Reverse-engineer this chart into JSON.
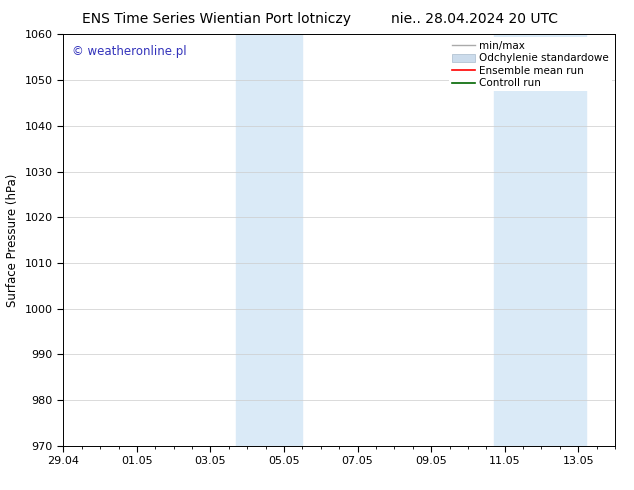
{
  "title_left": "ENS Time Series Wientian Port lotniczy",
  "title_right": "nie.. 28.04.2024 20 UTC",
  "ylabel": "Surface Pressure (hPa)",
  "ylim": [
    970,
    1060
  ],
  "yticks": [
    970,
    980,
    990,
    1000,
    1010,
    1020,
    1030,
    1040,
    1050,
    1060
  ],
  "xtick_labels": [
    "29.04",
    "01.05",
    "03.05",
    "05.05",
    "07.05",
    "09.05",
    "11.05",
    "13.05"
  ],
  "xtick_positions": [
    0,
    2,
    4,
    6,
    8,
    10,
    12,
    14
  ],
  "xlim": [
    0,
    15
  ],
  "background_color": "#ffffff",
  "plot_bg_color": "#ffffff",
  "shaded_bands": [
    {
      "x_start": 4.7,
      "x_end": 6.5,
      "color": "#daeaf7"
    },
    {
      "x_start": 11.7,
      "x_end": 14.2,
      "color": "#daeaf7"
    }
  ],
  "watermark_text": "© weatheronline.pl",
  "watermark_color": "#3333bb",
  "legend_labels": [
    "min/max",
    "Odchylenie standardowe",
    "Ensemble mean run",
    "Controll run"
  ],
  "legend_minmax_color": "#aaaaaa",
  "legend_std_color": "#ccdcec",
  "legend_ens_color": "#ff0000",
  "legend_ctrl_color": "#006600",
  "grid_color": "#cccccc",
  "tick_label_fontsize": 8,
  "title_fontsize": 10,
  "ylabel_fontsize": 8.5,
  "watermark_fontsize": 8.5,
  "legend_fontsize": 7.5,
  "fig_width": 6.34,
  "fig_height": 4.9,
  "dpi": 100
}
